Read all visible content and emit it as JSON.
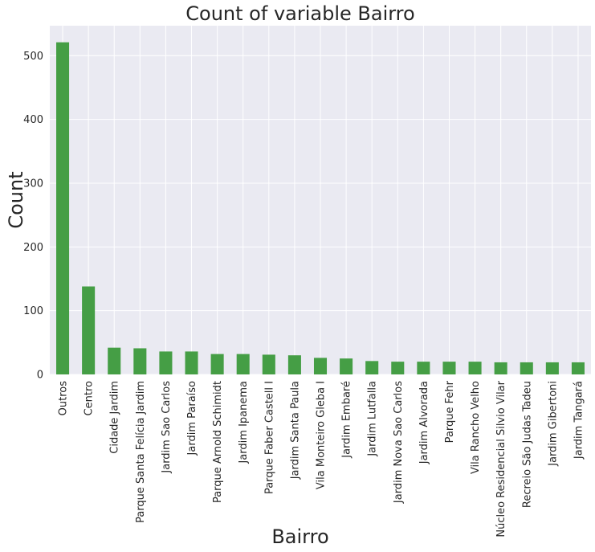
{
  "chart_data": {
    "type": "bar",
    "title": "Count of variable Bairro",
    "xlabel": "Bairro",
    "ylabel": "Count",
    "categories": [
      "Outros",
      "Centro",
      "Cidade Jardim",
      "Parque Santa Felícia Jardim",
      "Jardim Sao Carlos",
      "Jardim Paraíso",
      "Parque Arnold Schimidt",
      "Jardim Ipanema",
      "Parque Faber Castell I",
      "Jardim Santa Paula",
      "Vila Monteiro Gleba I",
      "Jardim Embaré",
      "Jardim Lutfalla",
      "Jardim Nova Sao Carlos",
      "Jardim Alvorada",
      "Parque Fehr",
      "Vila Rancho Velho",
      "Núcleo Residencial Silvio Vilar",
      "Recreio São Judas Tadeu",
      "Jardim Gibertoni",
      "Jardim Tangará"
    ],
    "values": [
      521,
      138,
      42,
      41,
      36,
      36,
      32,
      32,
      31,
      30,
      26,
      25,
      21,
      20,
      20,
      20,
      20,
      19,
      19,
      19,
      19
    ],
    "ylim": [
      0,
      547
    ],
    "yticks": [
      0,
      100,
      200,
      300,
      400,
      500
    ],
    "grid": true,
    "legend": "none",
    "colors": {
      "bar": "#459e45",
      "plot_background": "#eaeaf2",
      "grid": "#ffffff",
      "text": "#262626"
    }
  }
}
